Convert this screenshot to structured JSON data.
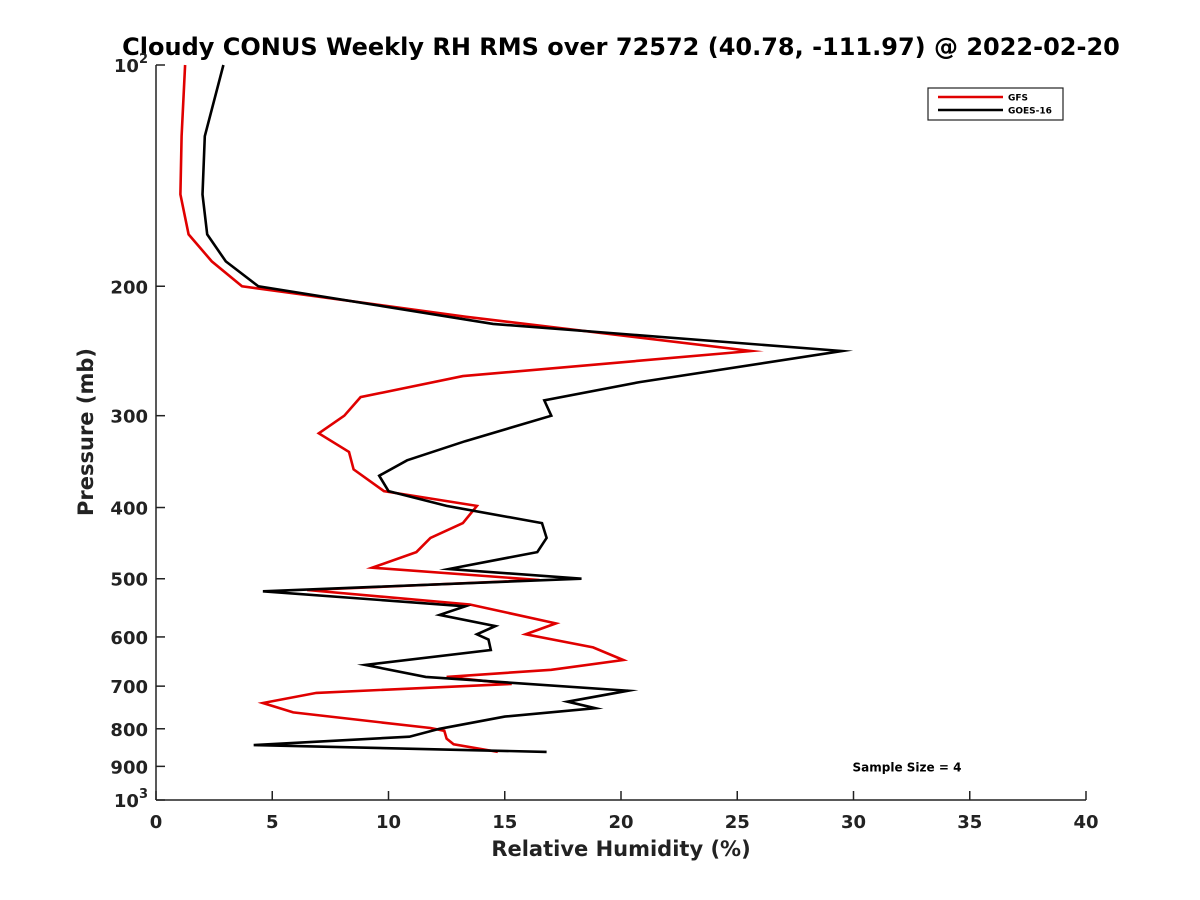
{
  "chart_data": {
    "type": "line",
    "title": "Cloudy CONUS Weekly RH RMS over 72572 (40.78, -111.97) @ 2022-02-20",
    "xlabel": "Relative Humidity (%)",
    "ylabel": "Pressure (mb)",
    "xlim": [
      0,
      40
    ],
    "ylim": [
      100,
      1000
    ],
    "yscale": "log",
    "yreversed": true,
    "grid": false,
    "legend_position": "top-right",
    "x_ticks": [
      0,
      5,
      10,
      15,
      20,
      25,
      30,
      35,
      40
    ],
    "y_ticks": [
      {
        "value": 100,
        "label": "10",
        "exp": "2"
      },
      {
        "value": 200,
        "label": "200",
        "exp": ""
      },
      {
        "value": 300,
        "label": "300",
        "exp": ""
      },
      {
        "value": 400,
        "label": "400",
        "exp": ""
      },
      {
        "value": 500,
        "label": "500",
        "exp": ""
      },
      {
        "value": 600,
        "label": "600",
        "exp": ""
      },
      {
        "value": 700,
        "label": "700",
        "exp": ""
      },
      {
        "value": 800,
        "label": "800",
        "exp": ""
      },
      {
        "value": 900,
        "label": "900",
        "exp": ""
      },
      {
        "value": 1000,
        "label": "10",
        "exp": "3"
      }
    ],
    "series": [
      {
        "name": "GFS",
        "color": "#e00000",
        "points": [
          [
            1.25,
            100
          ],
          [
            1.1,
            125
          ],
          [
            1.05,
            150
          ],
          [
            1.4,
            170
          ],
          [
            2.4,
            185
          ],
          [
            3.7,
            200
          ],
          [
            13.3,
            220
          ],
          [
            25.6,
            245
          ],
          [
            13.2,
            265
          ],
          [
            8.8,
            283
          ],
          [
            8.1,
            300
          ],
          [
            7.0,
            317
          ],
          [
            8.3,
            336
          ],
          [
            8.5,
            355
          ],
          [
            9.8,
            380
          ],
          [
            13.8,
            398
          ],
          [
            13.2,
            420
          ],
          [
            11.8,
            440
          ],
          [
            11.2,
            460
          ],
          [
            9.3,
            483
          ],
          [
            16.5,
            502
          ],
          [
            6.5,
            518
          ],
          [
            13.5,
            542
          ],
          [
            17.2,
            575
          ],
          [
            15.9,
            595
          ],
          [
            18.8,
            620
          ],
          [
            20.1,
            645
          ],
          [
            17.0,
            665
          ],
          [
            12.5,
            680
          ],
          [
            15.3,
            695
          ],
          [
            6.9,
            715
          ],
          [
            4.6,
            738
          ],
          [
            5.9,
            760
          ],
          [
            11.8,
            798
          ],
          [
            12.4,
            805
          ],
          [
            12.5,
            825
          ],
          [
            12.8,
            840
          ],
          [
            14.7,
            860
          ]
        ]
      },
      {
        "name": "GOES-16",
        "color": "#000000",
        "points": [
          [
            2.9,
            100
          ],
          [
            2.1,
            125
          ],
          [
            2.0,
            150
          ],
          [
            2.2,
            170
          ],
          [
            3.0,
            185
          ],
          [
            4.4,
            200
          ],
          [
            14.5,
            225
          ],
          [
            29.5,
            245
          ],
          [
            20.8,
            270
          ],
          [
            16.7,
            286
          ],
          [
            17.0,
            300
          ],
          [
            13.3,
            325
          ],
          [
            10.8,
            345
          ],
          [
            9.6,
            362
          ],
          [
            10.0,
            380
          ],
          [
            12.5,
            398
          ],
          [
            16.6,
            420
          ],
          [
            16.8,
            440
          ],
          [
            16.4,
            460
          ],
          [
            12.6,
            485
          ],
          [
            18.3,
            500
          ],
          [
            4.6,
            520
          ],
          [
            13.3,
            545
          ],
          [
            12.2,
            560
          ],
          [
            14.6,
            580
          ],
          [
            13.8,
            595
          ],
          [
            14.3,
            605
          ],
          [
            14.4,
            625
          ],
          [
            9.0,
            655
          ],
          [
            11.6,
            680
          ],
          [
            20.3,
            710
          ],
          [
            17.7,
            735
          ],
          [
            18.9,
            750
          ],
          [
            15.0,
            770
          ],
          [
            12.2,
            800
          ],
          [
            10.9,
            820
          ],
          [
            4.2,
            842
          ],
          [
            16.8,
            860
          ]
        ]
      }
    ],
    "annotations": [
      {
        "text": "Sample Size = 4",
        "x": 32.3,
        "y": 900
      }
    ]
  }
}
